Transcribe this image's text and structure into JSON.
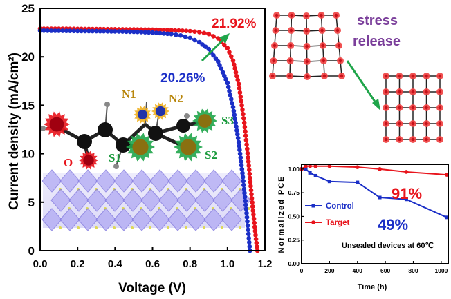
{
  "colors": {
    "target": "#e8141c",
    "control": "#1b2fc7",
    "arrow": "#1fa54a",
    "stress": "#7b3f9b",
    "lattice_node": "#f04040"
  },
  "chart_data": [
    {
      "type": "line",
      "xlabel": "Voltage (V)",
      "ylabel": "Current density (mA/cm²)",
      "xlim": [
        0,
        1.2
      ],
      "ylim": [
        0,
        25
      ],
      "x_ticks": [
        "0.0",
        "0.2",
        "0.4",
        "0.6",
        "0.8",
        "1.0",
        "1.2"
      ],
      "y_ticks": [
        "0",
        "5",
        "10",
        "15",
        "20",
        "25"
      ],
      "series": [
        {
          "color": "#e8141c",
          "x": [
            0,
            0.1,
            0.2,
            0.3,
            0.4,
            0.5,
            0.6,
            0.7,
            0.8,
            0.85,
            0.9,
            0.95,
            1.0,
            1.03,
            1.06,
            1.09,
            1.11,
            1.13,
            1.15,
            1.16
          ],
          "y": [
            22.9,
            22.9,
            22.88,
            22.86,
            22.84,
            22.82,
            22.8,
            22.75,
            22.65,
            22.55,
            22.35,
            21.9,
            20.9,
            19.6,
            17.2,
            13.2,
            9.6,
            5.4,
            1.6,
            0
          ]
        },
        {
          "color": "#1b2fc7",
          "x": [
            0,
            0.1,
            0.2,
            0.3,
            0.4,
            0.5,
            0.6,
            0.7,
            0.75,
            0.8,
            0.85,
            0.9,
            0.95,
            1.0,
            1.03,
            1.06,
            1.08,
            1.1,
            1.12
          ],
          "y": [
            22.7,
            22.68,
            22.66,
            22.64,
            22.62,
            22.58,
            22.5,
            22.35,
            22.2,
            21.95,
            21.5,
            20.8,
            19.5,
            17.3,
            14.8,
            11.2,
            8.0,
            4.3,
            0
          ]
        }
      ],
      "annotations": [
        "21.92%",
        "20.26%"
      ]
    },
    {
      "type": "line",
      "xlabel": "Time (h)",
      "ylabel": "Normalized PCE",
      "xlim": [
        0,
        1050
      ],
      "ylim": [
        0,
        1.05
      ],
      "x_ticks": [
        "0",
        "200",
        "400",
        "600",
        "800",
        "1000"
      ],
      "y_ticks": [
        "0.00",
        "0.25",
        "0.50",
        "0.75",
        "1.00"
      ],
      "series": [
        {
          "name": "Control",
          "color": "#1b2fc7",
          "x": [
            0,
            30,
            60,
            100,
            200,
            400,
            560,
            750,
            1040
          ],
          "y": [
            1.0,
            1.0,
            0.96,
            0.93,
            0.87,
            0.86,
            0.7,
            0.68,
            0.49
          ]
        },
        {
          "name": "Target",
          "color": "#e8141c",
          "x": [
            0,
            30,
            60,
            100,
            200,
            400,
            560,
            750,
            1040
          ],
          "y": [
            1.0,
            1.03,
            1.03,
            1.03,
            1.03,
            1.02,
            1.0,
            0.97,
            0.94
          ]
        }
      ],
      "annotations": [
        "91%",
        "49%",
        "Unsealed devices at 60℃"
      ]
    }
  ],
  "molecule_labels": {
    "n1": "N1",
    "n2": "N2",
    "s1": "S1",
    "s2": "S2",
    "s3": "S3",
    "o": "O"
  },
  "stress_label": {
    "line1": "stress",
    "line2": "release"
  }
}
